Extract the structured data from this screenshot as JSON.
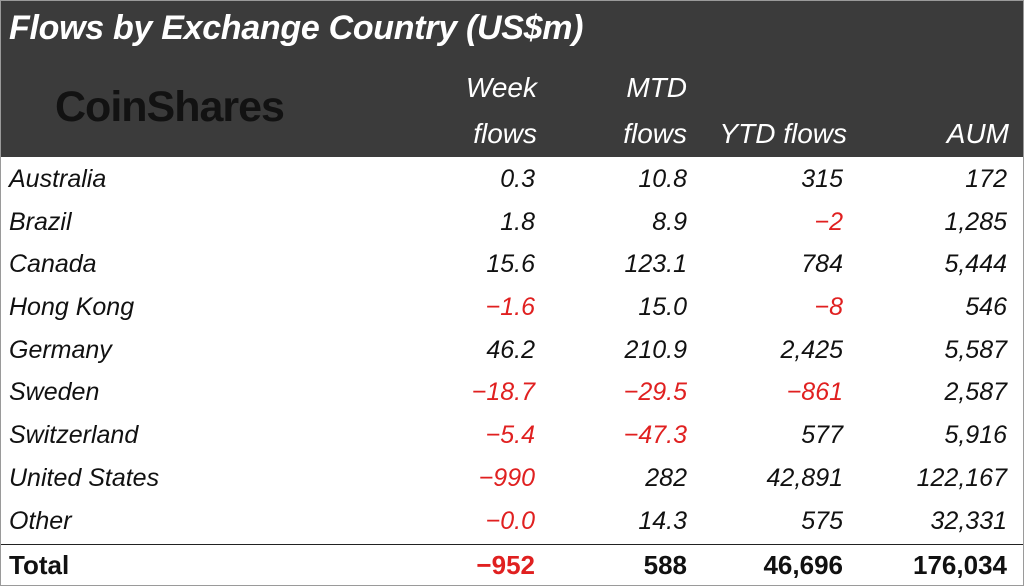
{
  "title": "Flows by Exchange Country (US$m)",
  "logo": "CoinShares",
  "colors": {
    "header_bg": "#3b3b3b",
    "negative": "#e02020",
    "text": "#111111"
  },
  "chart_data": {
    "type": "table",
    "title": "Flows by Exchange Country (US$m)",
    "columns": [
      {
        "line1": "Week",
        "line2": "flows"
      },
      {
        "line1": "MTD",
        "line2": "flows"
      },
      {
        "line1": "",
        "line2": "YTD flows"
      },
      {
        "line1": "",
        "line2": "AUM"
      }
    ],
    "rows": [
      {
        "label": "Australia",
        "values": [
          "0.3",
          "10.8",
          "315",
          "172"
        ]
      },
      {
        "label": "Brazil",
        "values": [
          "1.8",
          "8.9",
          "-2",
          "1,285"
        ]
      },
      {
        "label": "Canada",
        "values": [
          "15.6",
          "123.1",
          "784",
          "5,444"
        ]
      },
      {
        "label": "Hong Kong",
        "values": [
          "-1.6",
          "15.0",
          "-8",
          "546"
        ]
      },
      {
        "label": "Germany",
        "values": [
          "46.2",
          "210.9",
          "2,425",
          "5,587"
        ]
      },
      {
        "label": "Sweden",
        "values": [
          "-18.7",
          "-29.5",
          "-861",
          "2,587"
        ]
      },
      {
        "label": "Switzerland",
        "values": [
          "-5.4",
          "-47.3",
          "577",
          "5,916"
        ]
      },
      {
        "label": "United States",
        "values": [
          "-990",
          "282",
          "42,891",
          "122,167"
        ]
      },
      {
        "label": "Other",
        "values": [
          "-0.0",
          "14.3",
          "575",
          "32,331"
        ]
      }
    ],
    "total": {
      "label": "Total",
      "values": [
        "-952",
        "588",
        "46,696",
        "176,034"
      ]
    }
  }
}
